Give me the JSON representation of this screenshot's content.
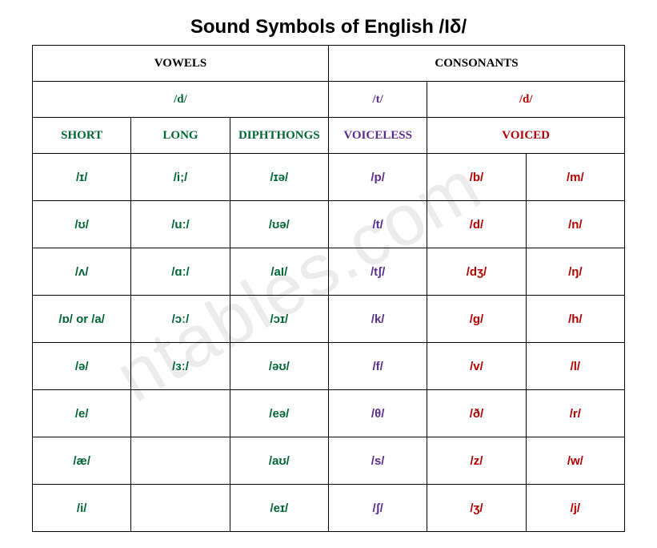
{
  "title": "Sound Symbols of English /Iδ/",
  "watermark": "ntables.com",
  "headers": {
    "vowels": "VOWELS",
    "consonants": "CONSONANTS",
    "vowel_sub": "/d/",
    "cons_sub_left": "/t/",
    "cons_sub_right": "/d/",
    "col_short": "SHORT",
    "col_long": "LONG",
    "col_diph": "DIPHTHONGS",
    "col_voiceless": "VOICELESS",
    "col_voiced": "VOICED"
  },
  "rows": [
    {
      "short": "/ɪ/",
      "long": "/i;/",
      "diph": "/ɪə/",
      "voiceless": "/p/",
      "voiced1": "/b/",
      "voiced2": "/m/"
    },
    {
      "short": "/ʊ/",
      "long": "/uː/",
      "diph": "/ʊə/",
      "voiceless": "/t/",
      "voiced1": "/d/",
      "voiced2": "/n/"
    },
    {
      "short": "/ʌ/",
      "long": "/ɑː/",
      "diph": "/aI/",
      "voiceless": "/tʃ/",
      "voiced1": "/dʒ/",
      "voiced2": "/ŋ/"
    },
    {
      "short": "/ɒ/ or /a/",
      "long": "/ɔː/",
      "diph": "/ɔɪ/",
      "voiceless": "/k/",
      "voiced1": "/g/",
      "voiced2": "/h/"
    },
    {
      "short": "/ə/",
      "long": "/ɜː/",
      "diph": "/əʊ/",
      "voiceless": "/f/",
      "voiced1": "/v/",
      "voiced2": "/l/"
    },
    {
      "short": "/e/",
      "long": "",
      "diph": "/eə/",
      "voiceless": "/θ/",
      "voiced1": "/ð/",
      "voiced2": "/r/"
    },
    {
      "short": "/æ/",
      "long": "",
      "diph": "/aʊ/",
      "voiceless": "/s/",
      "voiced1": "/z/",
      "voiced2": "/w/"
    },
    {
      "short": "/i/",
      "long": "",
      "diph": "/eɪ/",
      "voiceless": "/ʃ/",
      "voiced1": "/ʒ/",
      "voiced2": "/j/"
    }
  ],
  "colors": {
    "green": "#006633",
    "purple": "#5b2c8f",
    "red": "#b10000",
    "black": "#000000"
  }
}
